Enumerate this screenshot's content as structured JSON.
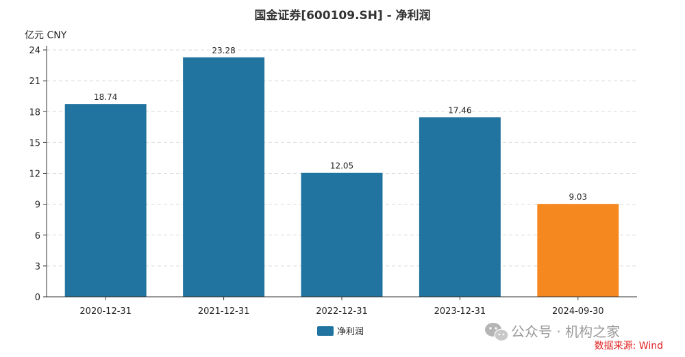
{
  "chart_data": {
    "type": "bar",
    "title": "国金证券[600109.SH] - 净利润",
    "unit_label": "亿元  CNY",
    "categories": [
      "2020-12-31",
      "2021-12-31",
      "2022-12-31",
      "2023-12-31",
      "2024-09-30"
    ],
    "series": [
      {
        "name": "净利润",
        "values": [
          18.74,
          23.28,
          12.05,
          17.46,
          9.03
        ],
        "value_labels": [
          "18.74",
          "23.28",
          "12.05",
          "17.46",
          "9.03"
        ],
        "color": "#2274a0",
        "highlight_last_color": "#f5891f"
      }
    ],
    "ylim": [
      0,
      24
    ],
    "yticks": [
      0,
      3,
      6,
      9,
      12,
      15,
      18,
      21,
      24
    ],
    "grid": true,
    "legend": "bottom-center"
  },
  "watermark": {
    "icon": "wechat-icon",
    "text": "公众号 · 机构之家"
  },
  "source": "数据来源: Wind"
}
